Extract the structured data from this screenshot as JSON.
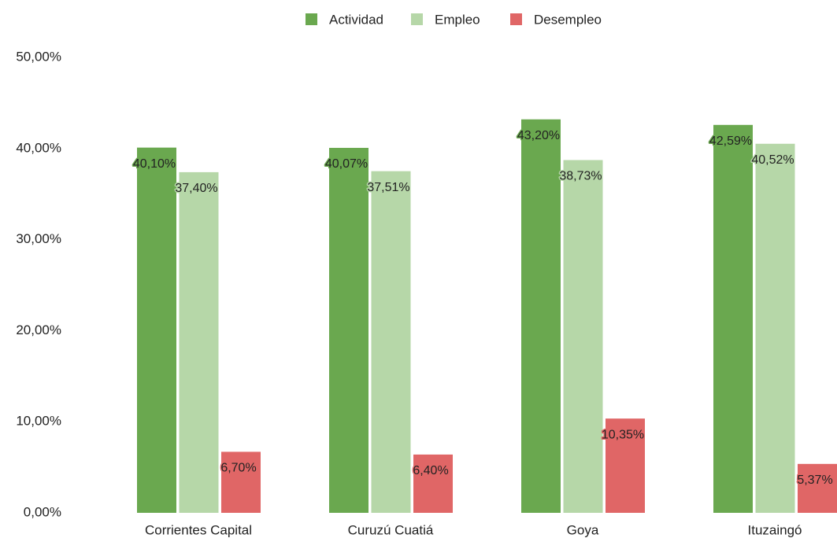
{
  "chart_data": {
    "type": "bar",
    "categories": [
      "Corrientes Capital",
      "Curuzú Cuatiá",
      "Goya",
      "Ituzaingó"
    ],
    "series": [
      {
        "name": "Actividad",
        "color": "#6aa84f",
        "values": [
          40.1,
          40.07,
          43.2,
          42.59
        ],
        "value_labels": [
          "40,10%",
          "40,07%",
          "43,20%",
          "42,59%"
        ]
      },
      {
        "name": "Empleo",
        "color": "#b6d7a8",
        "values": [
          37.4,
          37.51,
          38.73,
          40.52
        ],
        "value_labels": [
          "37,40%",
          "37,51%",
          "38,73%",
          "40,52%"
        ]
      },
      {
        "name": "Desempleo",
        "color": "#e06666",
        "values": [
          6.7,
          6.4,
          10.35,
          5.37
        ],
        "value_labels": [
          "6,70%",
          "6,40%",
          "10,35%",
          "5,37%"
        ]
      }
    ],
    "ylim": [
      0,
      50
    ],
    "yticks": [
      {
        "value": 0,
        "label": "0,00%"
      },
      {
        "value": 10,
        "label": "10,00%"
      },
      {
        "value": 20,
        "label": "20,00%"
      },
      {
        "value": 30,
        "label": "30,00%"
      },
      {
        "value": 40,
        "label": "40,00%"
      },
      {
        "value": 50,
        "label": "50,00%"
      }
    ],
    "grid": false,
    "legend": "top"
  }
}
